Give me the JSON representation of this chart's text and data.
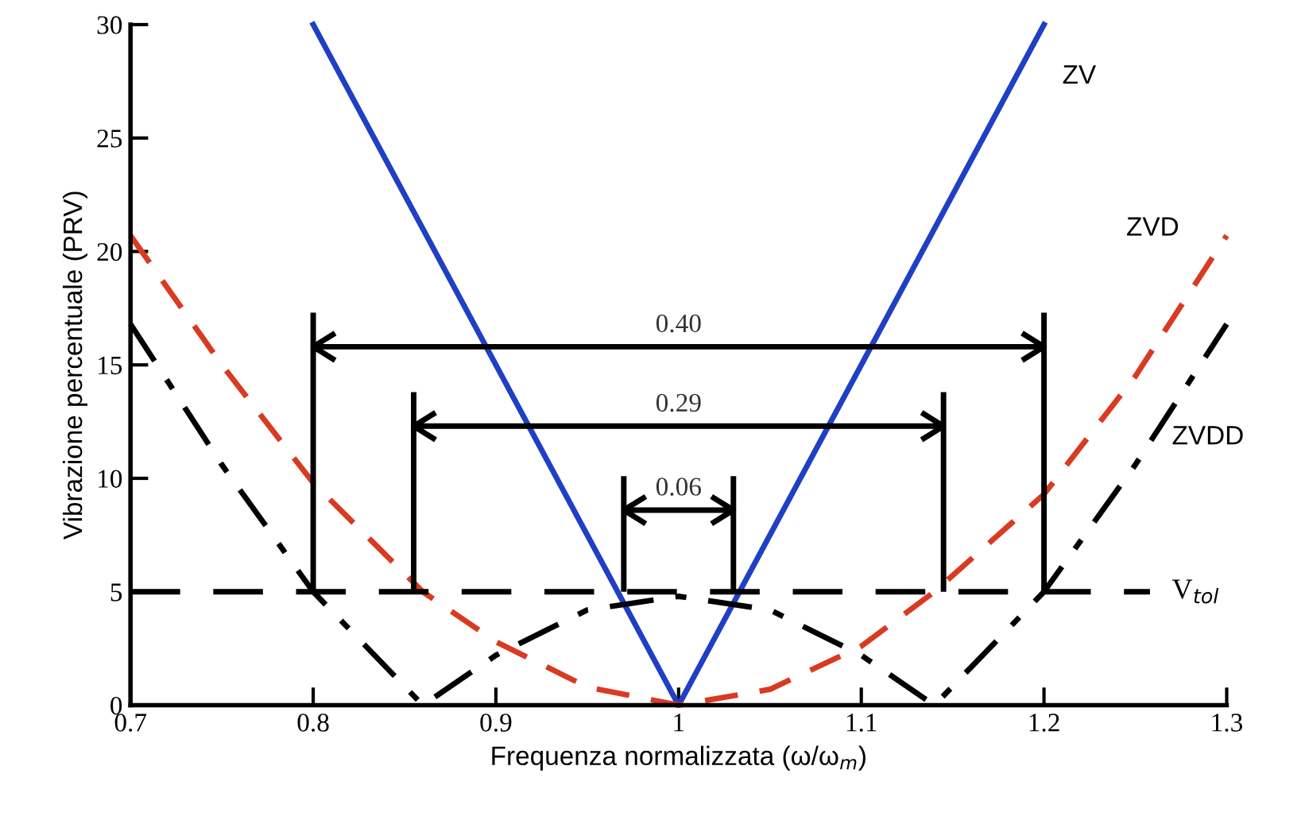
{
  "chart_data": {
    "type": "line",
    "xlabel": "Frequenza normalizzata (ω/ω$_{m}$)",
    "ylabel": "Vibrazione percentuale (PRV)",
    "xlim": [
      0.7,
      1.3
    ],
    "xticks": [
      0.7,
      0.8,
      0.9,
      {
        "value": 1,
        "label": "1"
      },
      1.1,
      1.2,
      1.3
    ],
    "ylim": [
      0,
      30
    ],
    "yticks": [
      0,
      5,
      10,
      15,
      20,
      25,
      30
    ],
    "grid": false,
    "legend": false,
    "series": [
      {
        "name": "ZV",
        "color": "#1f3fc4",
        "line_style": "solid",
        "x": [
          0.8,
          1.0,
          1.2
        ],
        "values": [
          30,
          0,
          30
        ]
      },
      {
        "name": "ZVD",
        "color": "#d93a22",
        "line_style": "dashed",
        "x": [
          0.7,
          0.75,
          0.8,
          0.86,
          0.9,
          0.95,
          1.0,
          1.05,
          1.1,
          1.14,
          1.2,
          1.25,
          1.3
        ],
        "values": [
          20.7,
          15,
          9.8,
          5,
          2.8,
          0.8,
          0,
          0.7,
          2.6,
          5,
          9.3,
          14.5,
          20.7
        ]
      },
      {
        "name": "ZVDD",
        "color": "#000000",
        "line_style": "dashdot",
        "x": [
          0.7,
          0.75,
          0.8,
          0.86,
          0.9,
          0.95,
          1.0,
          1.05,
          1.1,
          1.14,
          1.2,
          1.25,
          1.3
        ],
        "values": [
          16.8,
          10.6,
          5,
          0,
          2.2,
          4.2,
          4.8,
          4.2,
          2.2,
          0,
          5,
          10.6,
          16.8
        ]
      }
    ],
    "ref_lines": [
      {
        "axis": "y",
        "value": 5,
        "label": "V$_{tol}$",
        "color": "#000000",
        "line_style": "dashed"
      }
    ],
    "annotations": [
      "0.40",
      "0.29",
      "0.06"
    ]
  }
}
